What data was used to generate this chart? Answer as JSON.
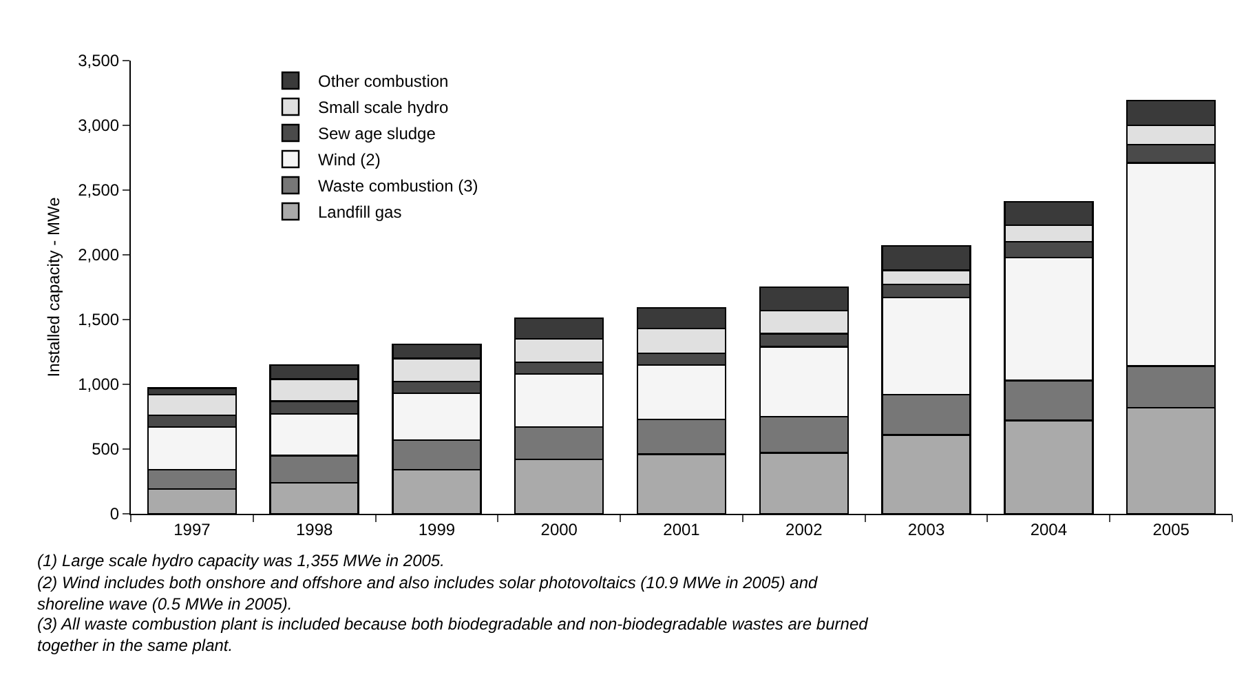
{
  "chart_data": {
    "type": "bar",
    "stacked": true,
    "ylabel": "Installed capacity - MWe",
    "categories": [
      "1997",
      "1998",
      "1999",
      "2000",
      "2001",
      "2002",
      "2003",
      "2004",
      "2005"
    ],
    "series": [
      {
        "name": "Landfill gas",
        "color": "#aaaaaa",
        "values": [
          190,
          240,
          340,
          420,
          460,
          470,
          610,
          720,
          820
        ]
      },
      {
        "name": "Waste combustion (3)",
        "color": "#777777",
        "values": [
          150,
          210,
          230,
          250,
          270,
          280,
          310,
          310,
          320
        ]
      },
      {
        "name": "Wind (2)",
        "color": "#f5f5f5",
        "values": [
          330,
          320,
          360,
          410,
          420,
          540,
          750,
          950,
          1570
        ]
      },
      {
        "name": "Sew age sludge",
        "color": "#4a4a4a",
        "values": [
          90,
          100,
          90,
          90,
          90,
          100,
          100,
          120,
          140
        ]
      },
      {
        "name": "Small scale hydro",
        "color": "#e0e0e0",
        "values": [
          160,
          170,
          180,
          180,
          190,
          180,
          110,
          130,
          150
        ]
      },
      {
        "name": "Other combustion",
        "color": "#3a3a3a",
        "values": [
          50,
          110,
          110,
          160,
          160,
          180,
          190,
          180,
          190
        ]
      }
    ],
    "ylim": [
      0,
      3500
    ],
    "yticks": [
      0,
      {
        "value": 500,
        "label": "500"
      },
      {
        "value": 1000,
        "label": "1,000"
      },
      {
        "value": 1500,
        "label": "1,500"
      },
      {
        "value": 2000,
        "label": "2,000"
      },
      {
        "value": 2500,
        "label": "2,500"
      },
      {
        "value": 3000,
        "label": "3,000"
      },
      {
        "value": 3500,
        "label": "3,500"
      }
    ],
    "grid": false,
    "legend": "top left",
    "annotations": [
      "(1) Large scale hydro capacity was 1,355 MWe in 2005.",
      "(2) Wind includes both onshore and offshore and also includes solar photovoltaics (10.9 MWe in 2005) and shoreline wave (0.5 MWe in 2005).",
      "(3) All waste combustion plant is included because both biodegradable and non-biodegradable wastes are burned together in the same plant."
    ]
  }
}
